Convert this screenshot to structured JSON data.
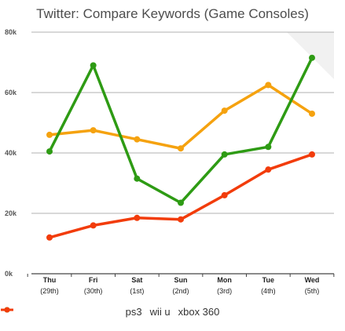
{
  "chart_data": {
    "type": "line",
    "title": "Twitter: Compare Keywords (Game Consoles)",
    "categories": [
      [
        "Thu",
        "(29th)"
      ],
      [
        "Fri",
        "(30th)"
      ],
      [
        "Sat",
        "(1st)"
      ],
      [
        "Sun",
        "(2nd)"
      ],
      [
        "Mon",
        "(3rd)"
      ],
      [
        "Tue",
        "(4th)"
      ],
      [
        "Wed",
        "(5th)"
      ]
    ],
    "ylim": [
      0,
      80000
    ],
    "yticks": [
      {
        "value": 0,
        "label": "0k"
      },
      {
        "value": 20000,
        "label": "20k"
      },
      {
        "value": 40000,
        "label": "40k"
      },
      {
        "value": 60000,
        "label": "60k"
      },
      {
        "value": 80000,
        "label": "80k"
      }
    ],
    "grid": true,
    "legend_position": "bottom",
    "series": [
      {
        "name": "ps3",
        "color": "#f5a20f",
        "values": [
          46000,
          47500,
          44500,
          41500,
          54000,
          62500,
          53000
        ]
      },
      {
        "name": "wii u",
        "color": "#2e9b14",
        "values": [
          40500,
          69000,
          31500,
          23500,
          39500,
          42000,
          71500
        ]
      },
      {
        "name": "xbox 360",
        "color": "#f23c0b",
        "values": [
          12000,
          16000,
          18500,
          18000,
          26000,
          34500,
          39500
        ]
      }
    ]
  }
}
